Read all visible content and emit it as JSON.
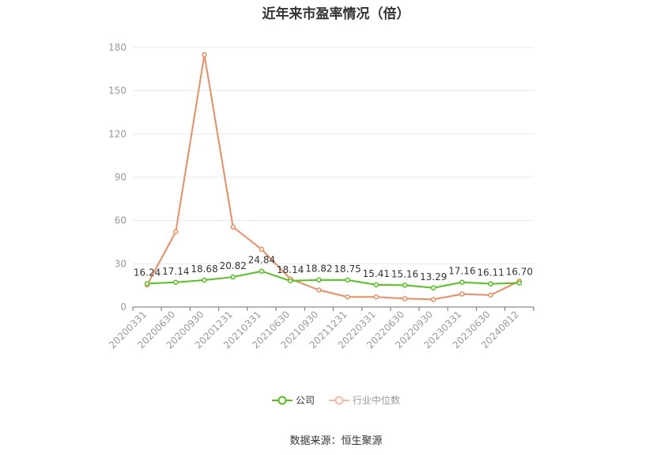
{
  "chart_data": {
    "type": "line",
    "title": "近年来市盈率情况（倍）",
    "categories": [
      "20200331",
      "20200630",
      "20200930",
      "20201231",
      "20210331",
      "20210630",
      "20210930",
      "20211231",
      "20220331",
      "20220630",
      "20220930",
      "20230331",
      "20230630",
      "20240812"
    ],
    "series": [
      {
        "name": "公司",
        "color": "#52c41a",
        "values": [
          16.24,
          17.14,
          18.68,
          20.82,
          24.84,
          18.14,
          18.82,
          18.75,
          15.41,
          15.16,
          13.29,
          17.16,
          16.11,
          16.7
        ]
      },
      {
        "name": "行业中位数",
        "color": "#f28c60",
        "values": [
          15.3,
          52.2,
          175.0,
          55.5,
          40.0,
          19.5,
          11.8,
          7.0,
          7.0,
          5.8,
          5.3,
          9.0,
          8.3,
          18.0
        ]
      }
    ],
    "data_labels": [
      "16.24",
      "17.14",
      "18.68",
      "20.82",
      "24.84",
      "18.14",
      "18.82",
      "18.75",
      "15.41",
      "15.16",
      "13.29",
      "17.16",
      "16.11",
      "16.70"
    ],
    "ylim": [
      0,
      180
    ],
    "yticks": [
      "0",
      "30",
      "60",
      "90",
      "120",
      "150",
      "180"
    ],
    "grid": true,
    "legend_position": "bottom"
  },
  "legend": {
    "company": "公司",
    "industry": "行业中位数"
  },
  "source": "数据来源：恒生聚源"
}
